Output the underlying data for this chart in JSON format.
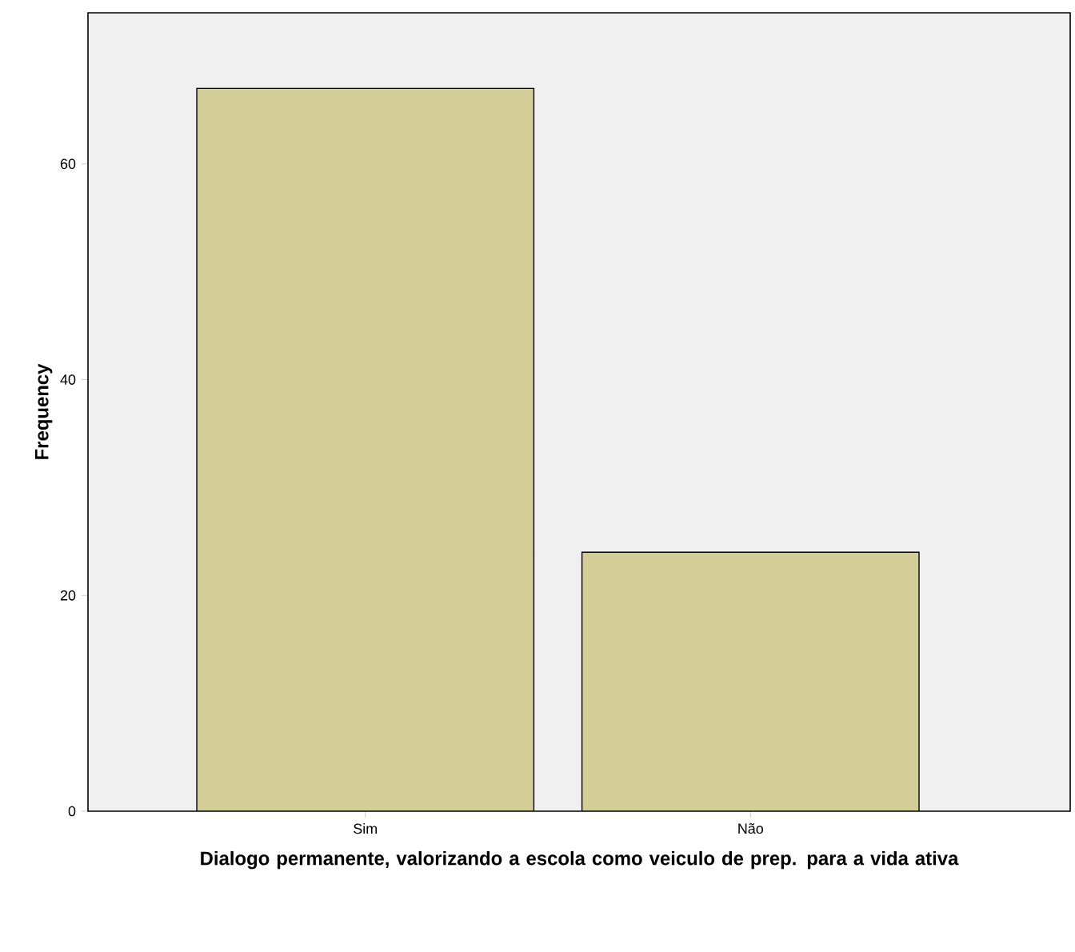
{
  "chart_data": {
    "type": "bar",
    "xlabel": "Dialogo permanente, valorizando a escola como veiculo de prep. para a vida ativa",
    "ylabel": "Frequency",
    "categories": [
      "Sim",
      "Não"
    ],
    "values": [
      67,
      24
    ],
    "color": "#d3ce98",
    "ylim": [
      0,
      74
    ],
    "yticks": [
      0,
      20,
      40,
      60
    ]
  }
}
